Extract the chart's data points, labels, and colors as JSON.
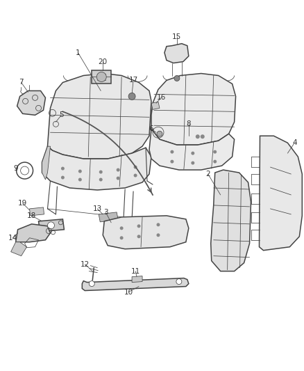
{
  "background_color": "#ffffff",
  "line_color": "#444444",
  "label_color": "#333333",
  "fig_width": 4.38,
  "fig_height": 5.33,
  "dpi": 100,
  "font_size": 7.5,
  "lw_main": 1.1,
  "lw_thin": 0.55,
  "lw_med": 0.8
}
